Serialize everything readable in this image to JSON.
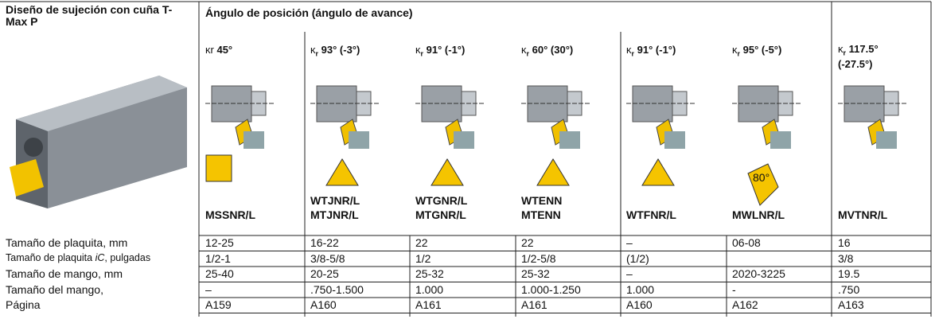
{
  "header": {
    "design_title": "Diseño de sujeción con cuña T-Max P",
    "angle_title": "Ángulo de posición (ángulo de avance)"
  },
  "columns": [
    {
      "kappa": "κr",
      "sub": null,
      "angle": "45°",
      "codes": [
        "MSSNR/L"
      ]
    },
    {
      "kappa": "κ",
      "sub": "r",
      "angle": "93° (-3°)",
      "codes": [
        "WTJNR/L",
        "MTJNR/L"
      ]
    },
    {
      "kappa": "κ",
      "sub": "r",
      "angle": "91° (-1°)",
      "codes": [
        "WTGNR/L",
        "MTGNR/L"
      ]
    },
    {
      "kappa": "κ",
      "sub": "r",
      "angle": "60° (30°)",
      "codes": [
        "WTENN",
        "MTENN"
      ]
    },
    {
      "kappa": "κ",
      "sub": "r",
      "angle": "91° (-1°)",
      "codes": [
        "WTFNR/L"
      ]
    },
    {
      "kappa": "κ",
      "sub": "r",
      "angle": "95° (-5°)",
      "codes": [
        "MWLNR/L"
      ]
    },
    {
      "kappa": "κ",
      "sub": "r",
      "angle": "117.5° (-27.5°)",
      "codes": [
        "MVTNR/L"
      ]
    }
  ],
  "insert_angle_label": "80°",
  "table": {
    "row_labels": [
      [
        "Tamaño de plaquita, mm"
      ],
      [
        "Tamaño de plaquita ",
        "iC",
        ", pulgadas"
      ],
      [
        "Tamaño de mango, mm"
      ],
      [
        "Tamaño del mango,"
      ],
      [
        "Página"
      ]
    ],
    "rows": [
      [
        "12-25",
        "16-22",
        "22",
        "22",
        "–",
        "06-08",
        "16"
      ],
      [
        "1/2-1",
        "3/8-5/8",
        "1/2",
        "1/2-5/8",
        "(1/2)",
        null,
        "3/8"
      ],
      [
        "25-40",
        "20-25",
        "25-32",
        "25-32",
        "–",
        "2020-3225",
        "19.5"
      ],
      [
        "–",
        ".750-1.500",
        "1.000",
        "1.000-1.250",
        "1.000",
        "-",
        ".750"
      ],
      [
        "A159",
        "A160",
        "A161",
        "A161",
        "A160",
        "A162",
        "A163"
      ]
    ]
  }
}
